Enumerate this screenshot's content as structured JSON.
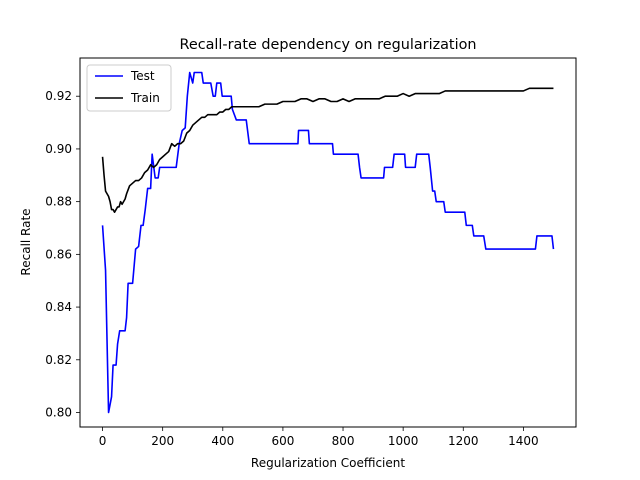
{
  "chart_data": {
    "type": "line",
    "title": "Recall-rate dependency on regularization",
    "xlabel": "Regularization Coefficient",
    "ylabel": "Recall Rate",
    "xlim": [
      -75,
      1575
    ],
    "ylim": [
      0.7945,
      0.9345
    ],
    "xticks": [
      0,
      200,
      400,
      600,
      800,
      1000,
      1200,
      1400
    ],
    "xtick_labels": [
      "0",
      "200",
      "400",
      "600",
      "800",
      "1000",
      "1200",
      "1400"
    ],
    "yticks": [
      0.8,
      0.82,
      0.84,
      0.86,
      0.88,
      0.9,
      0.92
    ],
    "ytick_labels": [
      "0.80",
      "0.82",
      "0.84",
      "0.86",
      "0.88",
      "0.90",
      "0.92"
    ],
    "grid": false,
    "legend": {
      "position": "top-left",
      "entries": [
        "Test",
        "Train"
      ]
    },
    "series": [
      {
        "name": "Test",
        "color": "#0000ff",
        "points": [
          [
            0,
            0.871
          ],
          [
            10,
            0.854
          ],
          [
            20,
            0.8
          ],
          [
            30,
            0.806
          ],
          [
            35,
            0.818
          ],
          [
            45,
            0.818
          ],
          [
            50,
            0.826
          ],
          [
            57,
            0.831
          ],
          [
            75,
            0.831
          ],
          [
            80,
            0.836
          ],
          [
            85,
            0.849
          ],
          [
            100,
            0.849
          ],
          [
            110,
            0.862
          ],
          [
            120,
            0.863
          ],
          [
            128,
            0.871
          ],
          [
            135,
            0.871
          ],
          [
            142,
            0.877
          ],
          [
            150,
            0.885
          ],
          [
            160,
            0.885
          ],
          [
            165,
            0.898
          ],
          [
            175,
            0.889
          ],
          [
            185,
            0.889
          ],
          [
            190,
            0.893
          ],
          [
            245,
            0.893
          ],
          [
            255,
            0.902
          ],
          [
            265,
            0.907
          ],
          [
            275,
            0.908
          ],
          [
            282,
            0.92
          ],
          [
            290,
            0.929
          ],
          [
            300,
            0.925
          ],
          [
            305,
            0.929
          ],
          [
            330,
            0.929
          ],
          [
            335,
            0.925
          ],
          [
            360,
            0.925
          ],
          [
            368,
            0.92
          ],
          [
            375,
            0.92
          ],
          [
            380,
            0.925
          ],
          [
            393,
            0.925
          ],
          [
            398,
            0.92
          ],
          [
            428,
            0.92
          ],
          [
            432,
            0.915
          ],
          [
            445,
            0.911
          ],
          [
            478,
            0.911
          ],
          [
            488,
            0.902
          ],
          [
            650,
            0.902
          ],
          [
            652,
            0.907
          ],
          [
            685,
            0.907
          ],
          [
            688,
            0.902
          ],
          [
            765,
            0.902
          ],
          [
            768,
            0.898
          ],
          [
            850,
            0.898
          ],
          [
            855,
            0.893
          ],
          [
            860,
            0.889
          ],
          [
            935,
            0.889
          ],
          [
            938,
            0.893
          ],
          [
            965,
            0.893
          ],
          [
            970,
            0.898
          ],
          [
            1005,
            0.898
          ],
          [
            1008,
            0.893
          ],
          [
            1040,
            0.893
          ],
          [
            1045,
            0.898
          ],
          [
            1085,
            0.898
          ],
          [
            1090,
            0.893
          ],
          [
            1098,
            0.884
          ],
          [
            1105,
            0.884
          ],
          [
            1110,
            0.88
          ],
          [
            1135,
            0.88
          ],
          [
            1140,
            0.876
          ],
          [
            1205,
            0.876
          ],
          [
            1210,
            0.871
          ],
          [
            1230,
            0.871
          ],
          [
            1235,
            0.867
          ],
          [
            1268,
            0.867
          ],
          [
            1275,
            0.862
          ],
          [
            1440,
            0.862
          ],
          [
            1445,
            0.867
          ],
          [
            1495,
            0.867
          ],
          [
            1500,
            0.862
          ]
        ]
      },
      {
        "name": "Train",
        "color": "#000000",
        "points": [
          [
            0,
            0.897
          ],
          [
            5,
            0.89
          ],
          [
            10,
            0.884
          ],
          [
            15,
            0.883
          ],
          [
            20,
            0.882
          ],
          [
            25,
            0.88
          ],
          [
            30,
            0.877
          ],
          [
            35,
            0.877
          ],
          [
            40,
            0.876
          ],
          [
            45,
            0.877
          ],
          [
            50,
            0.878
          ],
          [
            55,
            0.878
          ],
          [
            60,
            0.88
          ],
          [
            65,
            0.879
          ],
          [
            70,
            0.88
          ],
          [
            75,
            0.881
          ],
          [
            80,
            0.883
          ],
          [
            90,
            0.886
          ],
          [
            100,
            0.887
          ],
          [
            110,
            0.888
          ],
          [
            120,
            0.888
          ],
          [
            130,
            0.889
          ],
          [
            140,
            0.891
          ],
          [
            150,
            0.892
          ],
          [
            160,
            0.894
          ],
          [
            170,
            0.893
          ],
          [
            180,
            0.894
          ],
          [
            190,
            0.896
          ],
          [
            200,
            0.897
          ],
          [
            210,
            0.898
          ],
          [
            220,
            0.899
          ],
          [
            230,
            0.902
          ],
          [
            240,
            0.901
          ],
          [
            250,
            0.902
          ],
          [
            260,
            0.902
          ],
          [
            270,
            0.903
          ],
          [
            280,
            0.906
          ],
          [
            290,
            0.907
          ],
          [
            300,
            0.909
          ],
          [
            310,
            0.91
          ],
          [
            320,
            0.911
          ],
          [
            330,
            0.912
          ],
          [
            340,
            0.912
          ],
          [
            350,
            0.913
          ],
          [
            360,
            0.913
          ],
          [
            370,
            0.913
          ],
          [
            380,
            0.913
          ],
          [
            390,
            0.914
          ],
          [
            400,
            0.914
          ],
          [
            410,
            0.915
          ],
          [
            420,
            0.915
          ],
          [
            430,
            0.916
          ],
          [
            450,
            0.916
          ],
          [
            480,
            0.916
          ],
          [
            500,
            0.916
          ],
          [
            520,
            0.916
          ],
          [
            540,
            0.917
          ],
          [
            560,
            0.917
          ],
          [
            580,
            0.917
          ],
          [
            600,
            0.918
          ],
          [
            620,
            0.918
          ],
          [
            640,
            0.918
          ],
          [
            660,
            0.919
          ],
          [
            680,
            0.919
          ],
          [
            700,
            0.918
          ],
          [
            720,
            0.919
          ],
          [
            740,
            0.919
          ],
          [
            760,
            0.918
          ],
          [
            780,
            0.918
          ],
          [
            800,
            0.919
          ],
          [
            820,
            0.918
          ],
          [
            840,
            0.919
          ],
          [
            860,
            0.919
          ],
          [
            880,
            0.919
          ],
          [
            900,
            0.919
          ],
          [
            920,
            0.919
          ],
          [
            940,
            0.92
          ],
          [
            960,
            0.92
          ],
          [
            980,
            0.92
          ],
          [
            1000,
            0.921
          ],
          [
            1020,
            0.92
          ],
          [
            1040,
            0.921
          ],
          [
            1060,
            0.921
          ],
          [
            1080,
            0.921
          ],
          [
            1100,
            0.921
          ],
          [
            1120,
            0.921
          ],
          [
            1140,
            0.922
          ],
          [
            1160,
            0.922
          ],
          [
            1180,
            0.922
          ],
          [
            1200,
            0.922
          ],
          [
            1220,
            0.922
          ],
          [
            1240,
            0.922
          ],
          [
            1260,
            0.922
          ],
          [
            1280,
            0.922
          ],
          [
            1300,
            0.922
          ],
          [
            1320,
            0.922
          ],
          [
            1340,
            0.922
          ],
          [
            1360,
            0.922
          ],
          [
            1380,
            0.922
          ],
          [
            1400,
            0.922
          ],
          [
            1420,
            0.923
          ],
          [
            1440,
            0.923
          ],
          [
            1460,
            0.923
          ],
          [
            1480,
            0.923
          ],
          [
            1500,
            0.923
          ]
        ]
      }
    ]
  }
}
